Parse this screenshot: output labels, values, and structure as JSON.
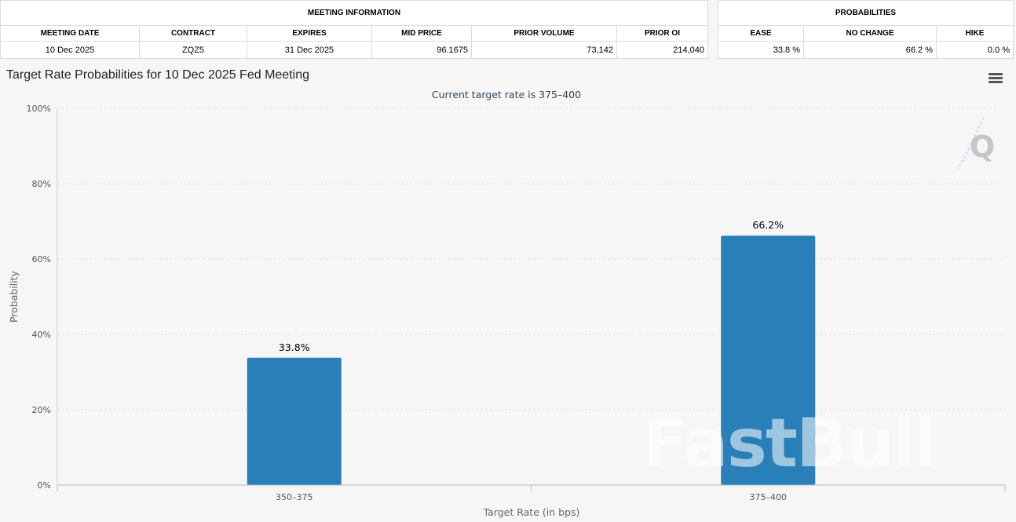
{
  "meeting_information": {
    "header": "MEETING INFORMATION",
    "columns": [
      "MEETING DATE",
      "CONTRACT",
      "EXPIRES",
      "MID PRICE",
      "PRIOR VOLUME",
      "PRIOR OI"
    ],
    "row": [
      "10 Dec 2025",
      "ZQZ5",
      "31 Dec 2025",
      "96.1675",
      "73,142",
      "214,040"
    ]
  },
  "probabilities": {
    "header": "PROBABILITIES",
    "columns": [
      "EASE",
      "NO CHANGE",
      "HIKE"
    ],
    "row": [
      "33.8 %",
      "66.2 %",
      "0.0 %"
    ]
  },
  "watermark": "FastBull",
  "logo_letter": "Q",
  "colors": {
    "bar": "#2980b9",
    "background": "#f6f6f6"
  },
  "chart_data": {
    "type": "bar",
    "title": "Target Rate Probabilities for 10 Dec 2025 Fed Meeting",
    "subtitle": "Current target rate is 375–400",
    "xlabel": "Target Rate (in bps)",
    "ylabel": "Probability",
    "categories": [
      "350–375",
      "375–400"
    ],
    "values": [
      33.8,
      66.2
    ],
    "data_labels": [
      "33.8%",
      "66.2%"
    ],
    "ylim": [
      0,
      100
    ],
    "yticks": [
      0,
      20,
      40,
      60,
      80,
      100
    ],
    "ytick_labels": [
      "0%",
      "20%",
      "40%",
      "60%",
      "80%",
      "100%"
    ],
    "grid": true,
    "legend": "none"
  }
}
